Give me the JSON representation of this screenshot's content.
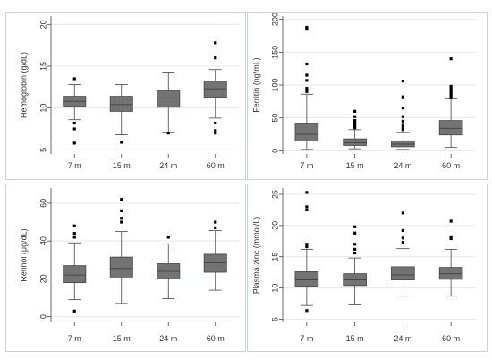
{
  "figure": {
    "background": "#ffffff",
    "panel_border_color": "#c9d4dc",
    "grid_color": "#e3e8ec",
    "box_fill": "#737373",
    "line_color": "#444444",
    "outlier_color": "#000000"
  },
  "chart_data": [
    {
      "type": "box",
      "position": "top-left",
      "xlabel": "",
      "ylabel": "Hemoglobin (g/dL)",
      "ylim": [
        4.5,
        21
      ],
      "yticks": [
        5,
        10,
        15,
        20
      ],
      "grid": true,
      "categories": [
        "7 m",
        "15 m",
        "24 m",
        "60 m"
      ],
      "series": [
        {
          "min": 8.6,
          "q1": 10.2,
          "median": 10.8,
          "q3": 11.4,
          "max": 12.8,
          "outliers": [
            13.5,
            8.2,
            7.5,
            5.8
          ]
        },
        {
          "min": 6.8,
          "q1": 9.6,
          "median": 10.4,
          "q3": 11.4,
          "max": 12.8,
          "outliers": [
            5.9
          ]
        },
        {
          "min": 7.1,
          "q1": 10.1,
          "median": 11.1,
          "q3": 12.1,
          "max": 14.3,
          "outliers": [
            7.0
          ]
        },
        {
          "min": 8.8,
          "q1": 11.3,
          "median": 12.3,
          "q3": 13.2,
          "max": 14.6,
          "outliers": [
            17.8,
            16.0,
            8.2,
            7.3,
            7.0
          ]
        }
      ]
    },
    {
      "type": "box",
      "position": "top-right",
      "xlabel": "",
      "ylabel": "Ferritin (ng/mL)",
      "ylim": [
        -5,
        205
      ],
      "yticks": [
        0,
        50,
        100,
        150,
        200
      ],
      "grid": true,
      "categories": [
        "7 m",
        "15 m",
        "24 m",
        "60 m"
      ],
      "series": [
        {
          "min": 2,
          "q1": 15,
          "median": 25,
          "q3": 42,
          "max": 86,
          "outliers": [
            188,
            185,
            132,
            115,
            107,
            95,
            90
          ]
        },
        {
          "min": 3,
          "q1": 8,
          "median": 12,
          "q3": 18,
          "max": 32,
          "outliers": [
            60,
            52,
            46,
            42,
            38,
            35
          ]
        },
        {
          "min": 2,
          "q1": 6,
          "median": 10,
          "q3": 15,
          "max": 28,
          "outliers": [
            106,
            82,
            65,
            52,
            45,
            40,
            36,
            32
          ]
        },
        {
          "min": 5,
          "q1": 24,
          "median": 34,
          "q3": 46,
          "max": 80,
          "outliers": [
            140,
            98,
            95,
            92,
            88,
            85,
            82
          ]
        }
      ]
    },
    {
      "type": "box",
      "position": "bottom-left",
      "xlabel": "",
      "ylabel": "Retinol (μg/dL)",
      "ylim": [
        -3,
        68
      ],
      "yticks": [
        0,
        20,
        40,
        60
      ],
      "grid": true,
      "categories": [
        "7 m",
        "15 m",
        "24 m",
        "60 m"
      ],
      "series": [
        {
          "min": 9,
          "q1": 18,
          "median": 22,
          "q3": 27,
          "max": 39,
          "outliers": [
            48,
            44,
            42,
            3
          ]
        },
        {
          "min": 7,
          "q1": 21,
          "median": 25.5,
          "q3": 31.5,
          "max": 45,
          "outliers": [
            62,
            56,
            52,
            50
          ]
        },
        {
          "min": 9.5,
          "q1": 20.5,
          "median": 24,
          "q3": 28,
          "max": 38.5,
          "outliers": [
            42
          ]
        },
        {
          "min": 14,
          "q1": 23.5,
          "median": 28.5,
          "q3": 33,
          "max": 45.5,
          "outliers": [
            50,
            47
          ]
        }
      ]
    },
    {
      "type": "box",
      "position": "bottom-right",
      "xlabel": "",
      "ylabel": "Plasma zinc (mmol/L)",
      "ylim": [
        4.5,
        26
      ],
      "yticks": [
        5,
        10,
        15,
        20,
        25
      ],
      "grid": true,
      "categories": [
        "7 m",
        "15 m",
        "24 m",
        "60 m"
      ],
      "series": [
        {
          "min": 7.2,
          "q1": 10.3,
          "median": 11.3,
          "q3": 12.6,
          "max": 16.2,
          "outliers": [
            25.3,
            23.0,
            22.5,
            17.0,
            16.6,
            6.4
          ]
        },
        {
          "min": 7.3,
          "q1": 10.4,
          "median": 11.3,
          "q3": 12.3,
          "max": 14.8,
          "outliers": [
            19.8,
            18.8,
            17.0,
            16.2,
            15.6
          ]
        },
        {
          "min": 8.7,
          "q1": 11.3,
          "median": 12.1,
          "q3": 13.4,
          "max": 16.3,
          "outliers": [
            22.0,
            19.2,
            18.0,
            17.3
          ]
        },
        {
          "min": 8.7,
          "q1": 11.4,
          "median": 12.3,
          "q3": 13.3,
          "max": 16.2,
          "outliers": [
            20.7,
            18.2,
            17.9
          ]
        }
      ]
    }
  ]
}
